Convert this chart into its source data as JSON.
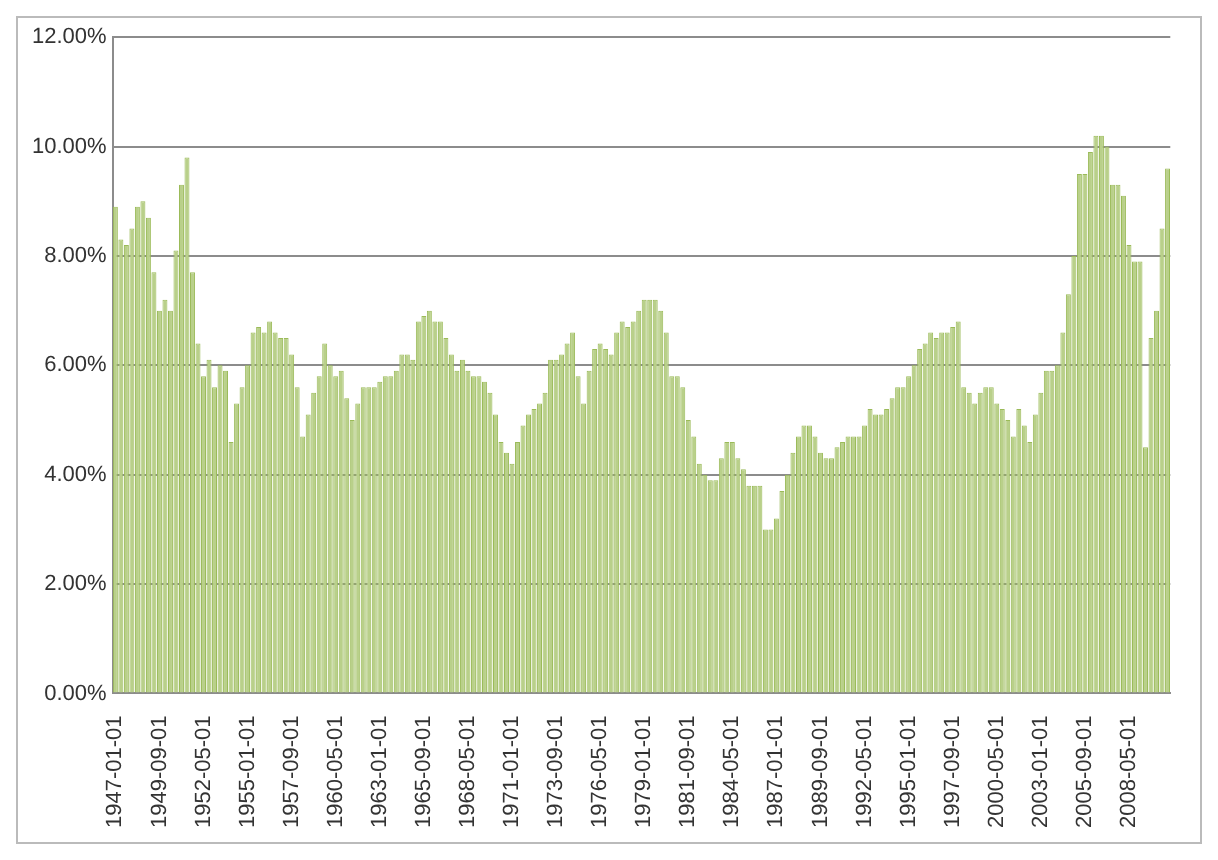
{
  "chart_data": {
    "type": "bar",
    "categories": [
      "1947-01-01",
      null,
      null,
      null,
      null,
      null,
      null,
      null,
      "1949-09-01",
      null,
      null,
      null,
      null,
      null,
      null,
      null,
      "1952-05-01",
      null,
      null,
      null,
      null,
      null,
      null,
      null,
      "1955-01-01",
      null,
      null,
      null,
      null,
      null,
      null,
      null,
      "1957-09-01",
      null,
      null,
      null,
      null,
      null,
      null,
      null,
      "1960-05-01",
      null,
      null,
      null,
      null,
      null,
      null,
      null,
      "1963-01-01",
      null,
      null,
      null,
      null,
      null,
      null,
      null,
      "1965-09-01",
      null,
      null,
      null,
      null,
      null,
      null,
      null,
      "1968-05-01",
      null,
      null,
      null,
      null,
      null,
      null,
      null,
      "1971-01-01",
      null,
      null,
      null,
      null,
      null,
      null,
      null,
      "1973-09-01",
      null,
      null,
      null,
      null,
      null,
      null,
      null,
      "1976-05-01",
      null,
      null,
      null,
      null,
      null,
      null,
      null,
      "1979-01-01",
      null,
      null,
      null,
      null,
      null,
      null,
      null,
      "1981-09-01",
      null,
      null,
      null,
      null,
      null,
      null,
      null,
      "1984-05-01",
      null,
      null,
      null,
      null,
      null,
      null,
      null,
      "1987-01-01",
      null,
      null,
      null,
      null,
      null,
      null,
      null,
      "1989-09-01",
      null,
      null,
      null,
      null,
      null,
      null,
      null,
      "1992-05-01",
      null,
      null,
      null,
      null,
      null,
      null,
      null,
      "1995-01-01",
      null,
      null,
      null,
      null,
      null,
      null,
      null,
      "1997-09-01",
      null,
      null,
      null,
      null,
      null,
      null,
      null,
      "2000-05-01",
      null,
      null,
      null,
      null,
      null,
      null,
      null,
      "2003-01-01",
      null,
      null,
      null,
      null,
      null,
      null,
      null,
      "2005-09-01",
      null,
      null,
      null,
      null,
      null,
      null,
      null,
      "2008-05-01",
      null,
      null,
      null,
      null,
      null,
      null,
      null
    ],
    "values": [
      8.9,
      8.3,
      8.2,
      8.5,
      8.9,
      9.0,
      8.7,
      7.7,
      7.0,
      7.2,
      7.0,
      8.1,
      9.3,
      9.8,
      7.7,
      6.4,
      5.8,
      6.1,
      5.6,
      6.0,
      5.9,
      4.6,
      5.3,
      5.6,
      6.0,
      6.6,
      6.7,
      6.6,
      6.8,
      6.6,
      6.5,
      6.5,
      6.2,
      5.6,
      4.7,
      5.1,
      5.5,
      5.8,
      6.4,
      6.0,
      5.8,
      5.9,
      5.4,
      5.0,
      5.3,
      5.6,
      5.6,
      5.6,
      5.7,
      5.8,
      5.8,
      5.9,
      6.2,
      6.2,
      6.1,
      6.8,
      6.9,
      7.0,
      6.8,
      6.8,
      6.5,
      6.2,
      5.9,
      6.1,
      5.9,
      5.8,
      5.8,
      5.7,
      5.5,
      5.1,
      4.6,
      4.4,
      4.2,
      4.6,
      4.9,
      5.1,
      5.2,
      5.3,
      5.5,
      6.1,
      6.1,
      6.2,
      6.4,
      6.6,
      5.8,
      5.3,
      5.9,
      6.3,
      6.4,
      6.3,
      6.2,
      6.6,
      6.8,
      6.7,
      6.8,
      7.0,
      7.2,
      7.2,
      7.2,
      7.0,
      6.6,
      5.8,
      5.8,
      5.6,
      5.0,
      4.7,
      4.2,
      4.0,
      3.9,
      3.9,
      4.3,
      4.6,
      4.6,
      4.3,
      4.1,
      3.8,
      3.8,
      3.8,
      3.0,
      3.0,
      3.2,
      3.7,
      4.0,
      4.4,
      4.7,
      4.9,
      4.9,
      4.7,
      4.4,
      4.3,
      4.3,
      4.5,
      4.6,
      4.7,
      4.7,
      4.7,
      4.9,
      5.2,
      5.1,
      5.1,
      5.2,
      5.4,
      5.6,
      5.6,
      5.8,
      6.0,
      6.3,
      6.4,
      6.6,
      6.5,
      6.6,
      6.6,
      6.7,
      6.8,
      5.6,
      5.5,
      5.3,
      5.5,
      5.6,
      5.6,
      5.3,
      5.2,
      5.0,
      4.7,
      5.2,
      4.9,
      4.6,
      5.1,
      5.5,
      5.9,
      5.9,
      6.0,
      6.6,
      7.3,
      8.0,
      9.5,
      9.5,
      9.9,
      10.2,
      10.2,
      10.0,
      9.3,
      9.3,
      9.1,
      8.2,
      7.9,
      7.9,
      4.5,
      6.5,
      7.0,
      8.5,
      9.6
    ],
    "color": "#b9d08a",
    "ylim": [
      0,
      12
    ],
    "yticks": [
      {
        "value": 0,
        "label": "0.00%"
      },
      {
        "value": 2,
        "label": "2.00%"
      },
      {
        "value": 4,
        "label": "4.00%"
      },
      {
        "value": 6,
        "label": "6.00%"
      },
      {
        "value": 8,
        "label": "8.00%"
      },
      {
        "value": 10,
        "label": "10.00%"
      },
      {
        "value": 12,
        "label": "12.00%"
      }
    ],
    "grid": "y"
  }
}
